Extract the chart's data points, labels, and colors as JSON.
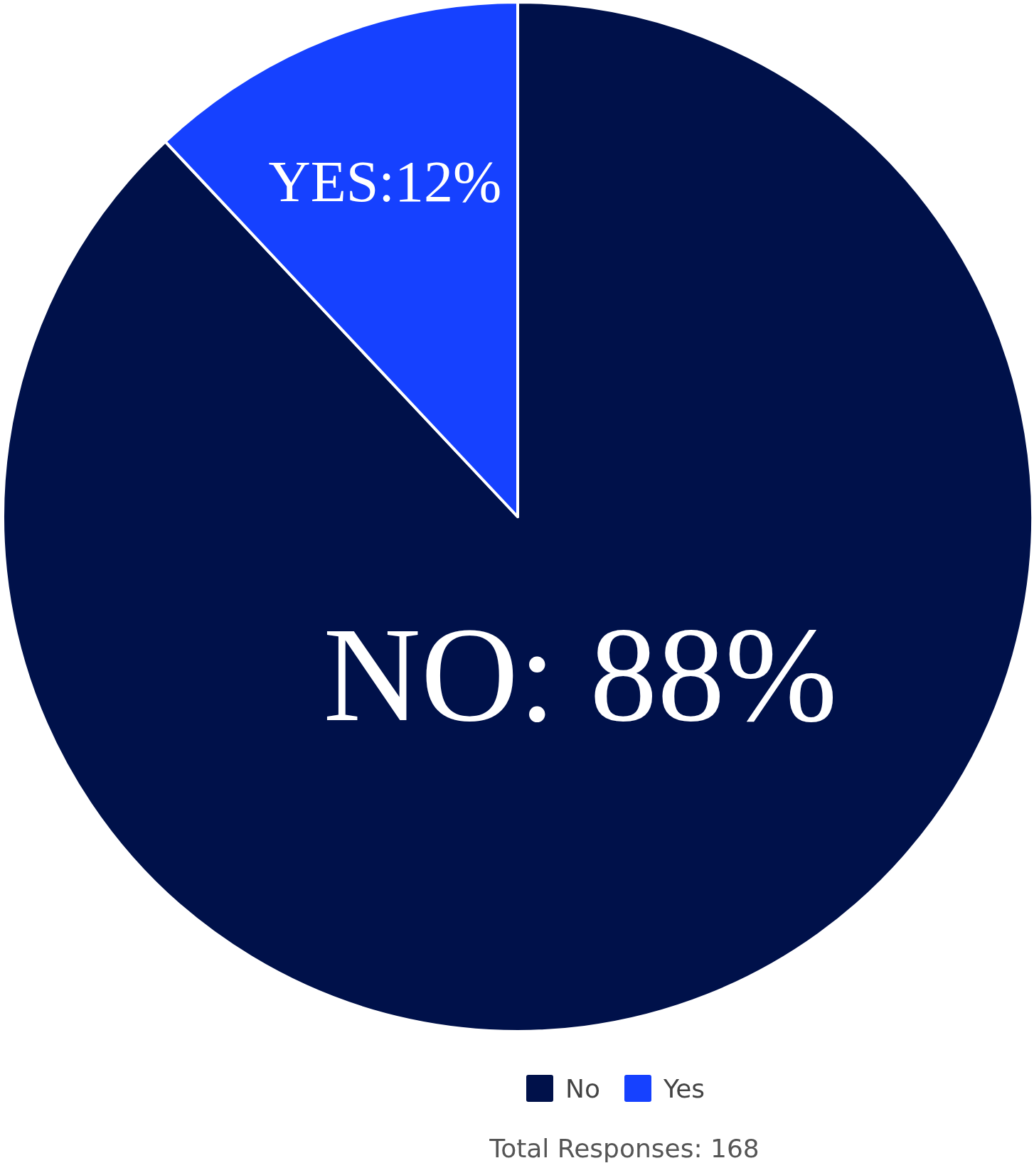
{
  "chart_data": {
    "type": "pie",
    "categories": [
      "No",
      "Yes"
    ],
    "values": [
      88,
      12
    ],
    "colors": [
      "#00114a",
      "#1641ff"
    ],
    "value_labels": [
      "NO: 88%",
      "YES:12%"
    ],
    "legend": "bottom",
    "annotations": [
      "Total Responses: 168"
    ]
  }
}
